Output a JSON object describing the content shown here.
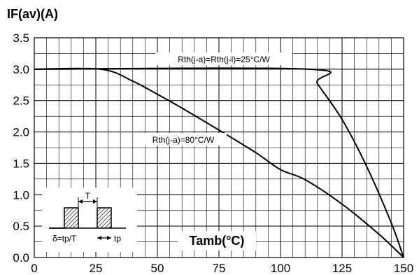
{
  "chart_data": {
    "type": "line",
    "title": "",
    "ylabel": "IF(av)(A)",
    "xlabel": "Tamb(°C)",
    "xlim": [
      0,
      150
    ],
    "ylim": [
      0,
      3.5
    ],
    "x_ticks": [
      "0",
      "25",
      "50",
      "75",
      "100",
      "125",
      "150"
    ],
    "y_ticks": [
      "0.0",
      "0.5",
      "1.0",
      "1.5",
      "2.0",
      "2.5",
      "3.0",
      "3.5"
    ],
    "x_tick_values": [
      0,
      25,
      50,
      75,
      100,
      125,
      150
    ],
    "y_tick_values": [
      0,
      0.5,
      1.0,
      1.5,
      2.0,
      2.5,
      3.0,
      3.5
    ],
    "grid": true,
    "x_minor_step": 5,
    "y_minor_step": 0.25,
    "series": [
      {
        "name": "Rth(j-a)=Rth(j-l)=25°C/W",
        "points": [
          [
            0,
            3.0
          ],
          [
            111.5,
            3.0
          ],
          [
            115,
            2.77
          ],
          [
            125,
            2.2
          ],
          [
            135,
            1.45
          ],
          [
            145,
            0.55
          ],
          [
            150,
            0.0
          ]
        ]
      },
      {
        "name": "Rth(j-a)=80°C/W",
        "points": [
          [
            0,
            3.0
          ],
          [
            27,
            3.0
          ],
          [
            40,
            2.81
          ],
          [
            50,
            2.6
          ],
          [
            60,
            2.38
          ],
          [
            75,
            2.03
          ],
          [
            90,
            1.67
          ],
          [
            100,
            1.4
          ],
          [
            110,
            1.24
          ],
          [
            125,
            0.85
          ],
          [
            140,
            0.37
          ],
          [
            150,
            0.0
          ]
        ]
      }
    ],
    "annotations": {
      "curve_label_1": "Rth(j-a)=Rth(j-l)=25°C/W",
      "curve_label_2": "Rth(j-a)=80°C/W",
      "inset_T": "T",
      "inset_delta": "δ=tp/T",
      "inset_tp": "tp"
    }
  }
}
